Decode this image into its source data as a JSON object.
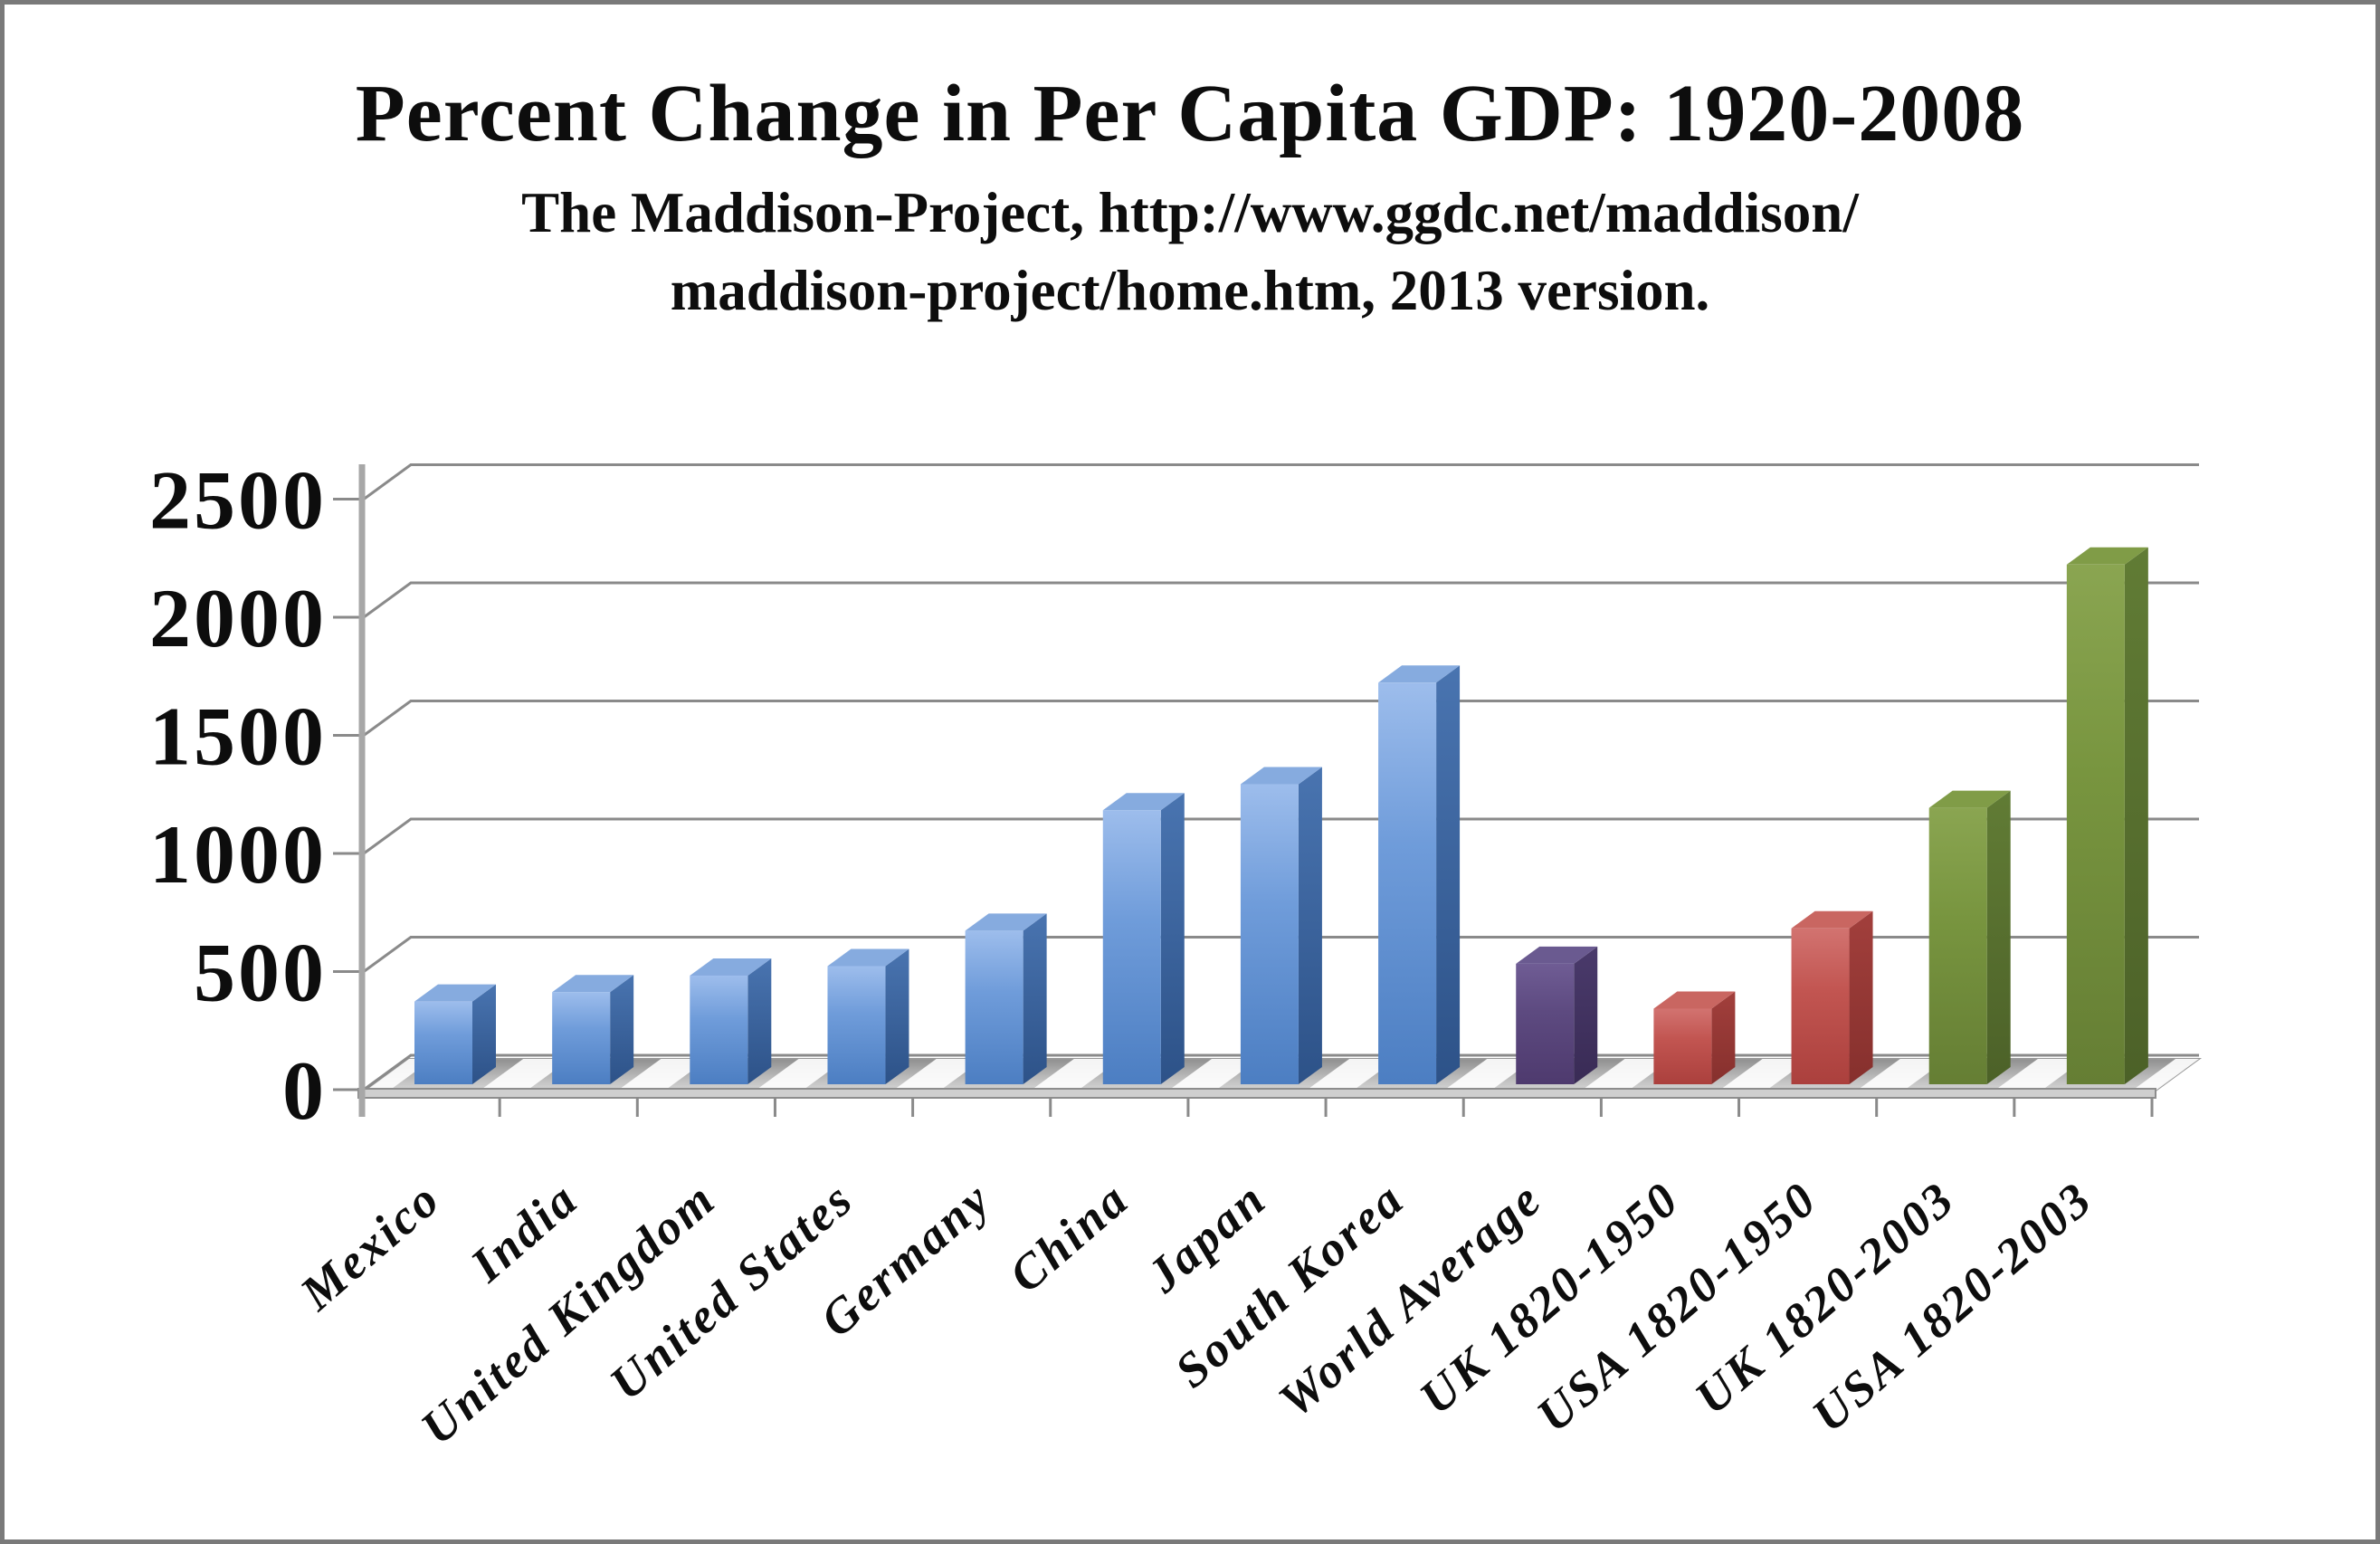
{
  "frame": {
    "background": "#ffffff",
    "border_color": "#7a7a7a"
  },
  "header": {
    "title": "Percent Change in Per Capita GDP: 1920-2008",
    "subtitle_line1": "The Maddison-Project, http://www.ggdc.net/maddison/",
    "subtitle_line2": "maddison-project/home.htm, 2013 version."
  },
  "chart_data": {
    "type": "bar",
    "style": "3d-column",
    "title": "Percent Change in Per Capita GDP: 1920-2008",
    "source_note": "The Maddison-Project, http://www.ggdc.net/maddison/maddison-project/home.htm, 2013 version.",
    "categories": [
      "Mexico",
      "India",
      "United Kingdom",
      "United States",
      "Germany",
      "China",
      "Japan",
      "South Korea",
      "World Average",
      "UK 1820-1950",
      "USA 1820-1950",
      "UK 1820-2003",
      "USA 1820-2003"
    ],
    "values": [
      350,
      390,
      460,
      500,
      650,
      1160,
      1270,
      1700,
      510,
      320,
      660,
      1170,
      2200
    ],
    "series_color_keys": [
      "blue",
      "blue",
      "blue",
      "blue",
      "blue",
      "blue",
      "blue",
      "blue",
      "purple",
      "red",
      "red",
      "green",
      "green"
    ],
    "y_ticks": [
      0,
      500,
      1000,
      1500,
      2000,
      2500
    ],
    "y_tick_labels": [
      "0",
      "500",
      "1000",
      "1500",
      "2000",
      "2500"
    ],
    "ylim": [
      0,
      2500
    ],
    "xlabel": "",
    "ylabel": "",
    "grid": true,
    "legend": "none",
    "palette": {
      "blue": {
        "front_top": "#9dbdec",
        "front_mid": "#6f9cda",
        "front_bottom": "#4c7ec2",
        "side_top": "#4974b0",
        "side_bottom": "#2d5288",
        "top": "#86abdf"
      },
      "purple": {
        "front_top": "#6f5c94",
        "front_mid": "#5d4a80",
        "front_bottom": "#4e3a6e",
        "side_top": "#4a3a6b",
        "side_bottom": "#392b55",
        "top": "#6a5a90"
      },
      "red": {
        "front_top": "#d27370",
        "front_mid": "#c25551",
        "front_bottom": "#ab403d",
        "side_top": "#a23f3c",
        "side_bottom": "#86302d",
        "top": "#c96661"
      },
      "green": {
        "front_top": "#8aa551",
        "front_mid": "#78953f",
        "front_bottom": "#657e34",
        "side_top": "#617c35",
        "side_bottom": "#4c6128",
        "top": "#809c47"
      },
      "gridline": "#8a8a8a",
      "axis": "#a7a7a7",
      "floor_back": "#8f8f8f",
      "floor_mid": "#b8b8b8",
      "floor_front": "#dadada",
      "rim_fill": "#cfcfcf",
      "rim_edge": "#8d8d8d",
      "text": "#0d0d0d"
    }
  }
}
